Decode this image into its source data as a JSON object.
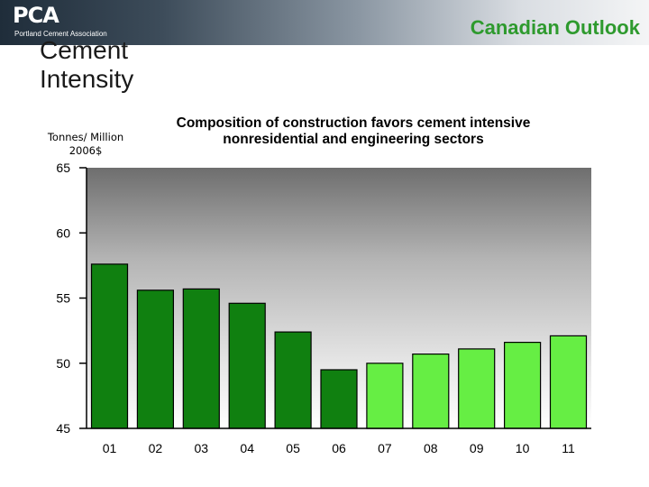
{
  "header": {
    "logo_text": "PCA",
    "logo_subtitle": "Portland Cement Association",
    "section_label": "Canadian Outlook"
  },
  "slide": {
    "title": "Cement Intensity"
  },
  "colors": {
    "dark_bar": "#108010",
    "light_bar": "#66ee44",
    "accent": "#2e9a2e"
  },
  "chart_data": {
    "type": "bar",
    "title": "Composition of construction favors cement intensive nonresidential and engineering sectors",
    "ylabel": "Tonnes/ Million 2006$",
    "xlabel": "",
    "categories": [
      "01",
      "02",
      "03",
      "04",
      "05",
      "06",
      "07",
      "08",
      "09",
      "10",
      "11"
    ],
    "values": [
      57.6,
      55.6,
      55.7,
      54.6,
      52.4,
      49.5,
      50.0,
      50.7,
      51.1,
      51.6,
      52.1
    ],
    "bar_shade": [
      "dark",
      "dark",
      "dark",
      "dark",
      "dark",
      "dark",
      "light",
      "light",
      "light",
      "light",
      "light"
    ],
    "ylim": [
      45,
      65
    ],
    "yticks": [
      45,
      50,
      55,
      60,
      65
    ],
    "grid": false,
    "legend": "none"
  }
}
